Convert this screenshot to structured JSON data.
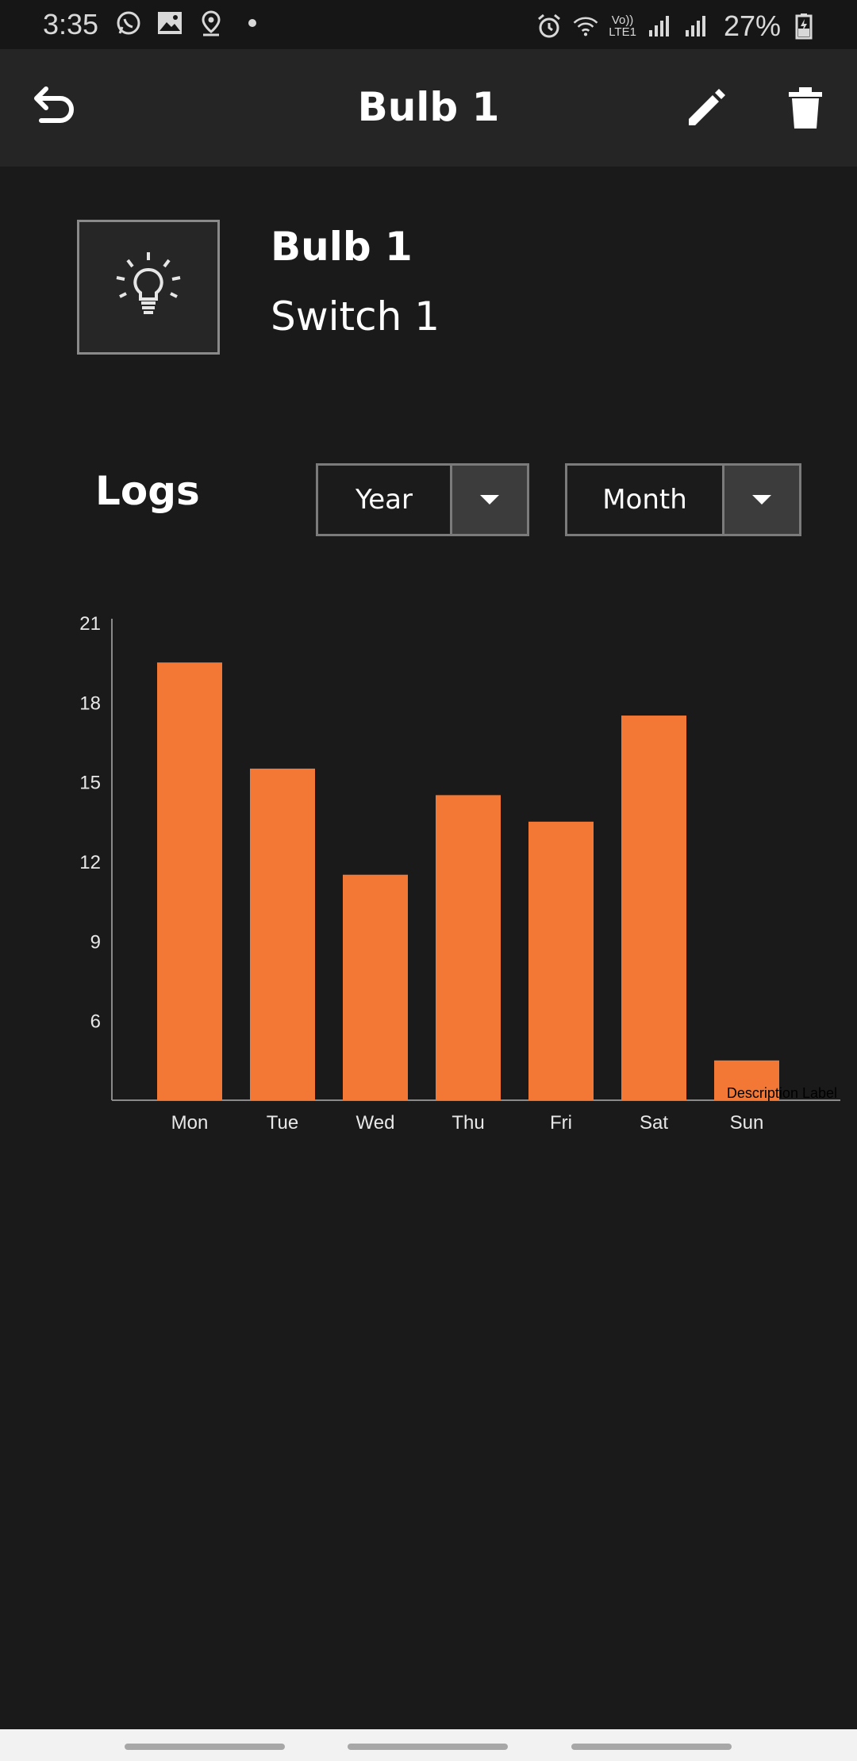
{
  "status_bar": {
    "time": "3:35",
    "network_label": "Vo))\nLTE1",
    "battery": "27%"
  },
  "app_bar": {
    "title": "Bulb 1",
    "back_icon": "undo-arrow-icon",
    "edit_icon": "pencil-icon",
    "delete_icon": "trash-icon"
  },
  "device": {
    "name": "Bulb 1",
    "switch": "Switch 1",
    "icon": "lightbulb-icon"
  },
  "logs": {
    "label": "Logs",
    "year_dropdown": {
      "value": "Year"
    },
    "month_dropdown": {
      "value": "Month"
    }
  },
  "colors": {
    "background": "#1a1a1a",
    "app_bar": "#252525",
    "bar": "#f47835",
    "axis": "#8a8a8a"
  },
  "chart_data": {
    "type": "bar",
    "categories": [
      "Mon",
      "Tue",
      "Wed",
      "Thu",
      "Fri",
      "Sat",
      "Sun"
    ],
    "values": [
      19.5,
      15.5,
      11.5,
      14.5,
      13.5,
      17.5,
      4.5
    ],
    "y_ticks": [
      "6",
      "9",
      "12",
      "15",
      "18",
      "21"
    ],
    "ylim": [
      3,
      21
    ],
    "description_label": "Description Label",
    "grid": false,
    "legend": "none"
  }
}
